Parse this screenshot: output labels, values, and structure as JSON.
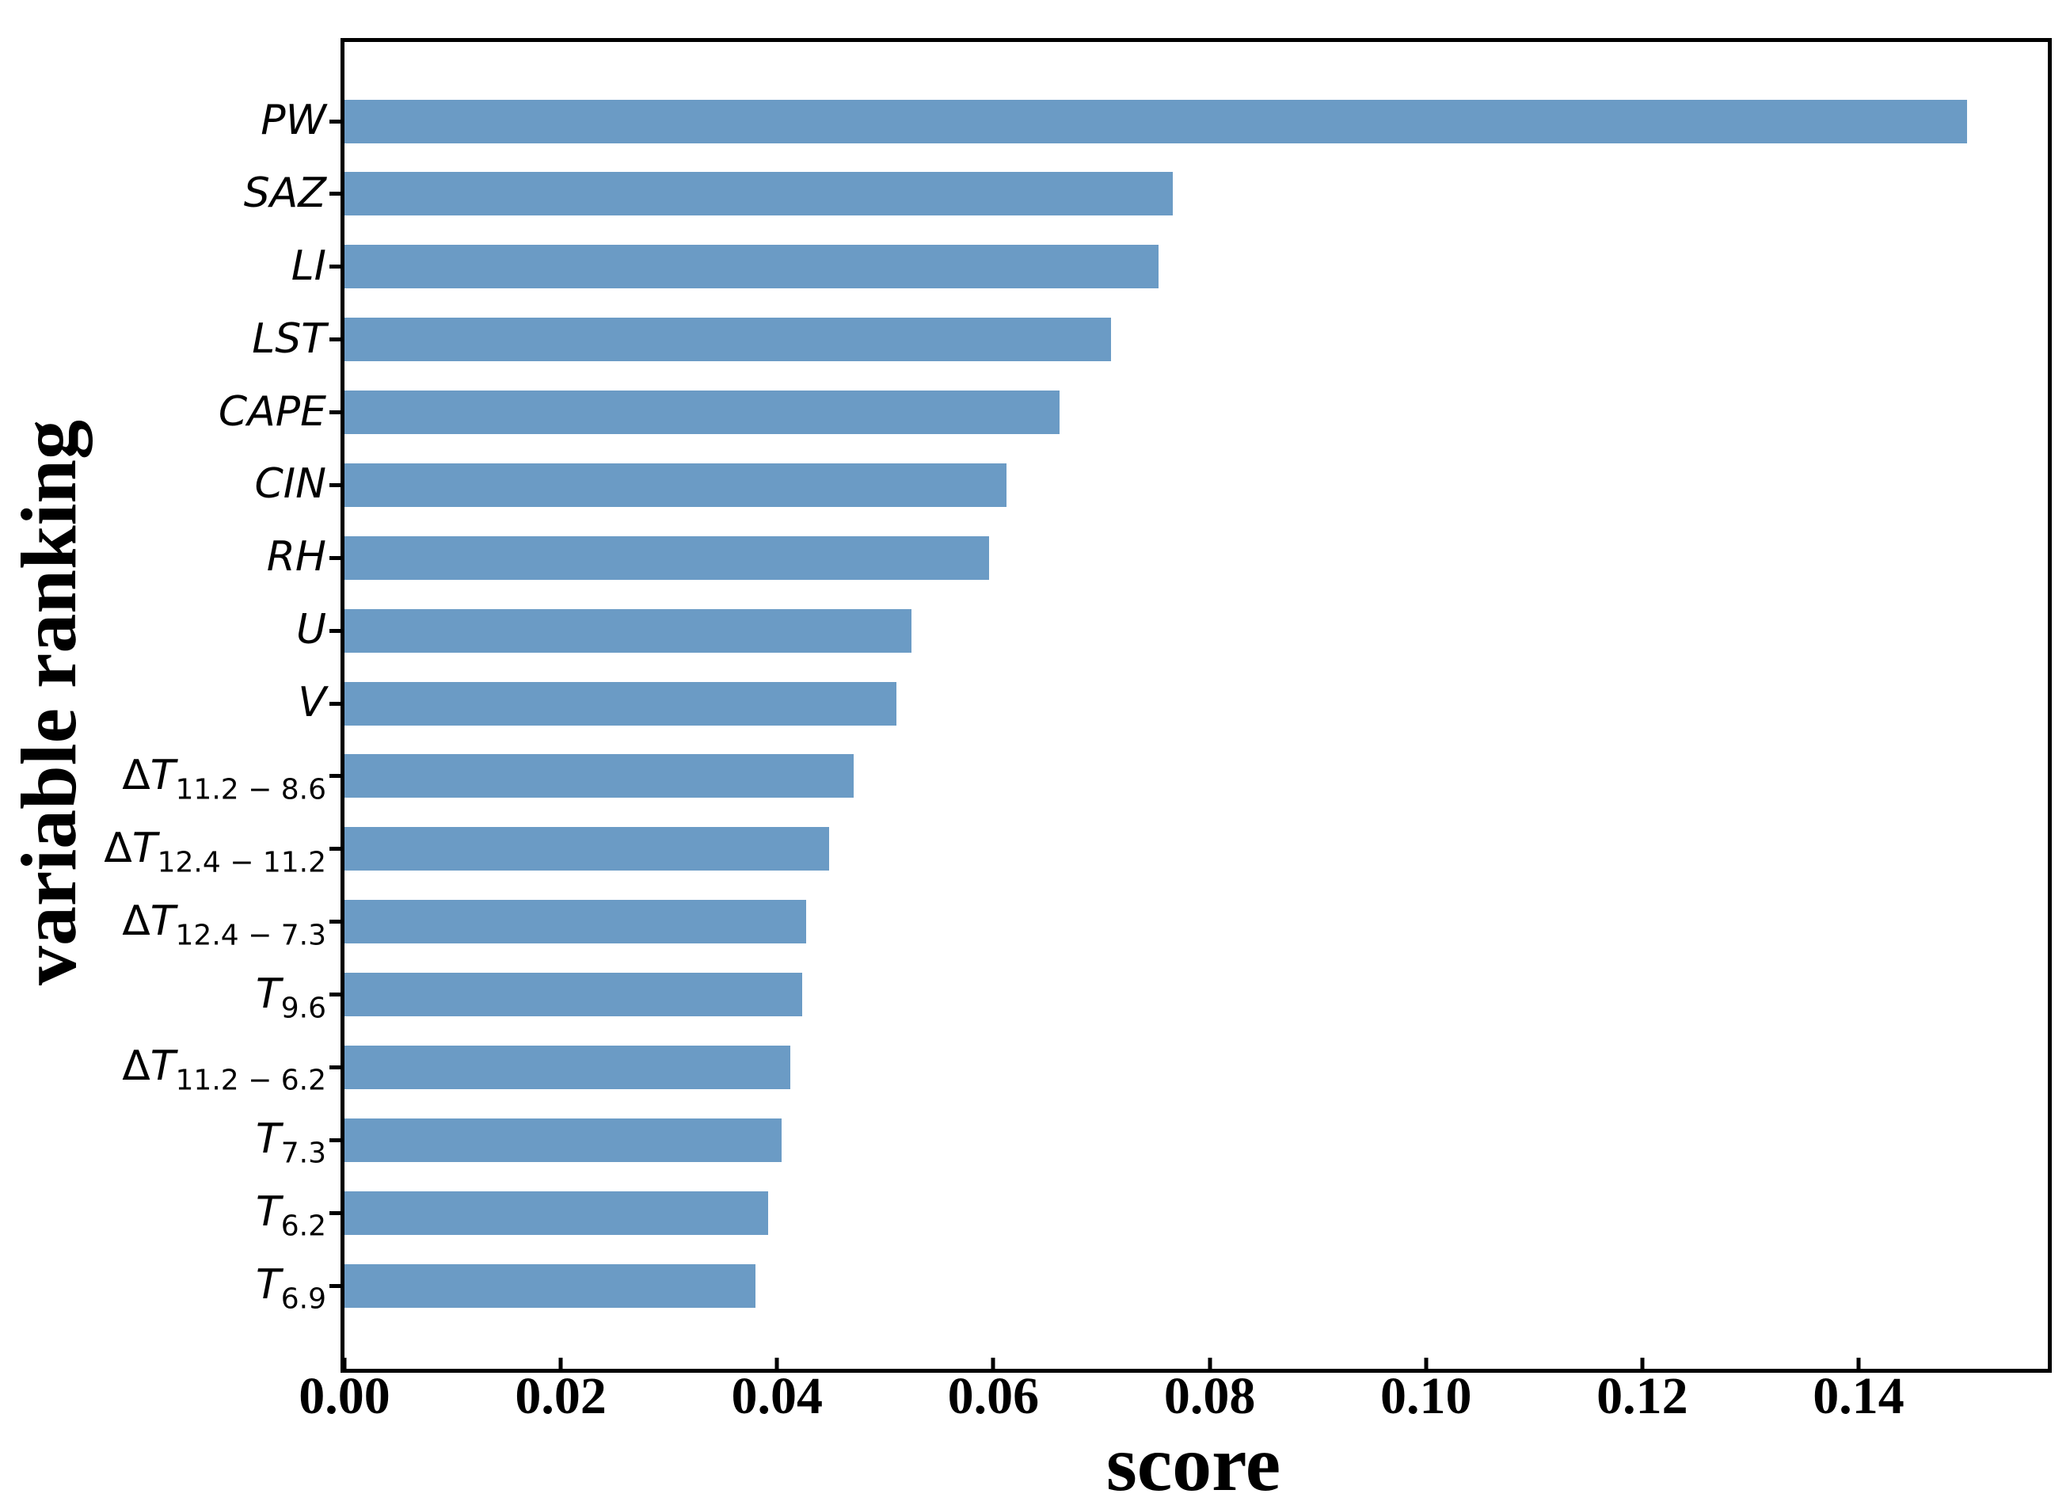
{
  "chart_data": {
    "type": "bar",
    "orientation": "horizontal",
    "title": "",
    "xlabel": "score",
    "ylabel": "variable ranking",
    "xlim": [
      0,
      0.1575
    ],
    "grid": false,
    "legend": false,
    "bar_color": "#6B9BC5",
    "xticks": [
      {
        "value": 0.0,
        "label": "0.00"
      },
      {
        "value": 0.02,
        "label": "0.02"
      },
      {
        "value": 0.04,
        "label": "0.04"
      },
      {
        "value": 0.06,
        "label": "0.06"
      },
      {
        "value": 0.08,
        "label": "0.08"
      },
      {
        "value": 0.1,
        "label": "0.10"
      },
      {
        "value": 0.12,
        "label": "0.12"
      },
      {
        "value": 0.14,
        "label": "0.14"
      }
    ],
    "categories": [
      {
        "prefix": "",
        "main": "PW",
        "sub": ""
      },
      {
        "prefix": "",
        "main": "SAZ",
        "sub": ""
      },
      {
        "prefix": "",
        "main": "LI",
        "sub": ""
      },
      {
        "prefix": "",
        "main": "LST",
        "sub": ""
      },
      {
        "prefix": "",
        "main": "CAPE",
        "sub": ""
      },
      {
        "prefix": "",
        "main": "CIN",
        "sub": ""
      },
      {
        "prefix": "",
        "main": "RH",
        "sub": ""
      },
      {
        "prefix": "",
        "main": "U",
        "sub": ""
      },
      {
        "prefix": "",
        "main": "V",
        "sub": ""
      },
      {
        "prefix": "Δ",
        "main": "T",
        "sub": "11.2 − 8.6"
      },
      {
        "prefix": "Δ",
        "main": "T",
        "sub": "12.4 − 11.2"
      },
      {
        "prefix": "Δ",
        "main": "T",
        "sub": "12.4 − 7.3"
      },
      {
        "prefix": "",
        "main": "T",
        "sub": "9.6"
      },
      {
        "prefix": "Δ",
        "main": "T",
        "sub": "11.2 − 6.2"
      },
      {
        "prefix": "",
        "main": "T",
        "sub": "7.3"
      },
      {
        "prefix": "",
        "main": "T",
        "sub": "6.2"
      },
      {
        "prefix": "",
        "main": "T",
        "sub": "6.9"
      }
    ],
    "values": [
      0.15,
      0.0766,
      0.0753,
      0.0709,
      0.0661,
      0.0612,
      0.0596,
      0.0524,
      0.051,
      0.0471,
      0.0448,
      0.0427,
      0.0423,
      0.0412,
      0.0404,
      0.0392,
      0.038
    ]
  }
}
